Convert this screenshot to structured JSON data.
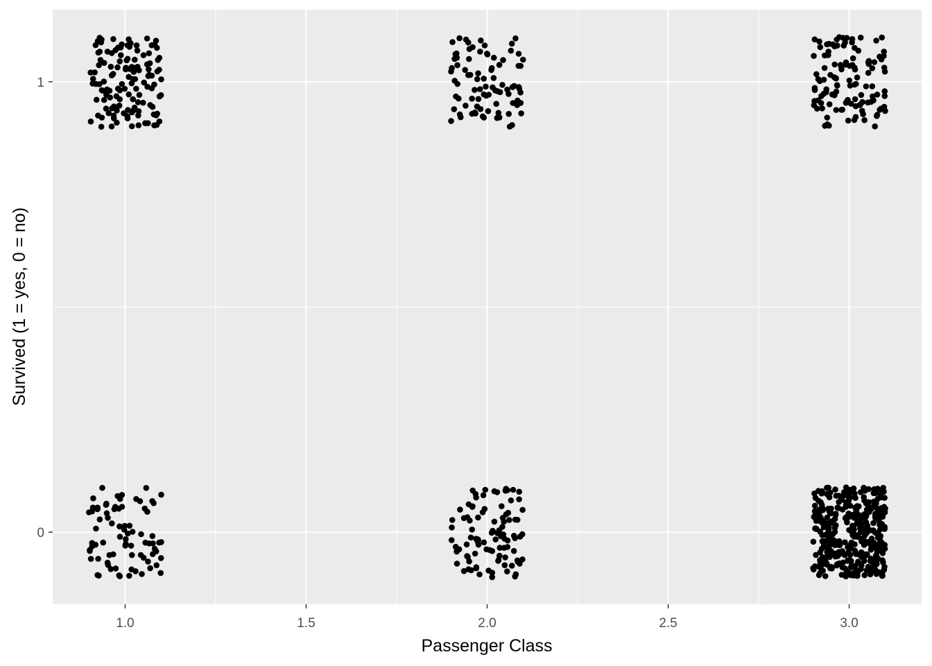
{
  "chart_data": {
    "type": "scatter",
    "title": "",
    "xlabel": "Passenger Class",
    "ylabel": "Survived (1 = yes, 0 = no)",
    "xlim": [
      0.8,
      3.2
    ],
    "ylim": [
      -0.16,
      1.16
    ],
    "x_ticks": [
      1.0,
      1.5,
      2.0,
      2.5,
      3.0
    ],
    "x_tick_labels": [
      "1.0",
      "1.5",
      "2.0",
      "2.5",
      "3.0"
    ],
    "y_ticks": [
      0,
      1
    ],
    "y_tick_labels": [
      "0",
      "1"
    ],
    "jitter": 0.1,
    "grid": true,
    "legend": "none",
    "point_color": "#000000",
    "panel_background": "#ebebeb",
    "grid_color": "#ffffff",
    "groups": [
      {
        "x": 1,
        "y": 1,
        "count": 136
      },
      {
        "x": 1,
        "y": 0,
        "count": 80
      },
      {
        "x": 2,
        "y": 1,
        "count": 87
      },
      {
        "x": 2,
        "y": 0,
        "count": 97
      },
      {
        "x": 3,
        "y": 1,
        "count": 119
      },
      {
        "x": 3,
        "y": 0,
        "count": 372
      }
    ]
  }
}
